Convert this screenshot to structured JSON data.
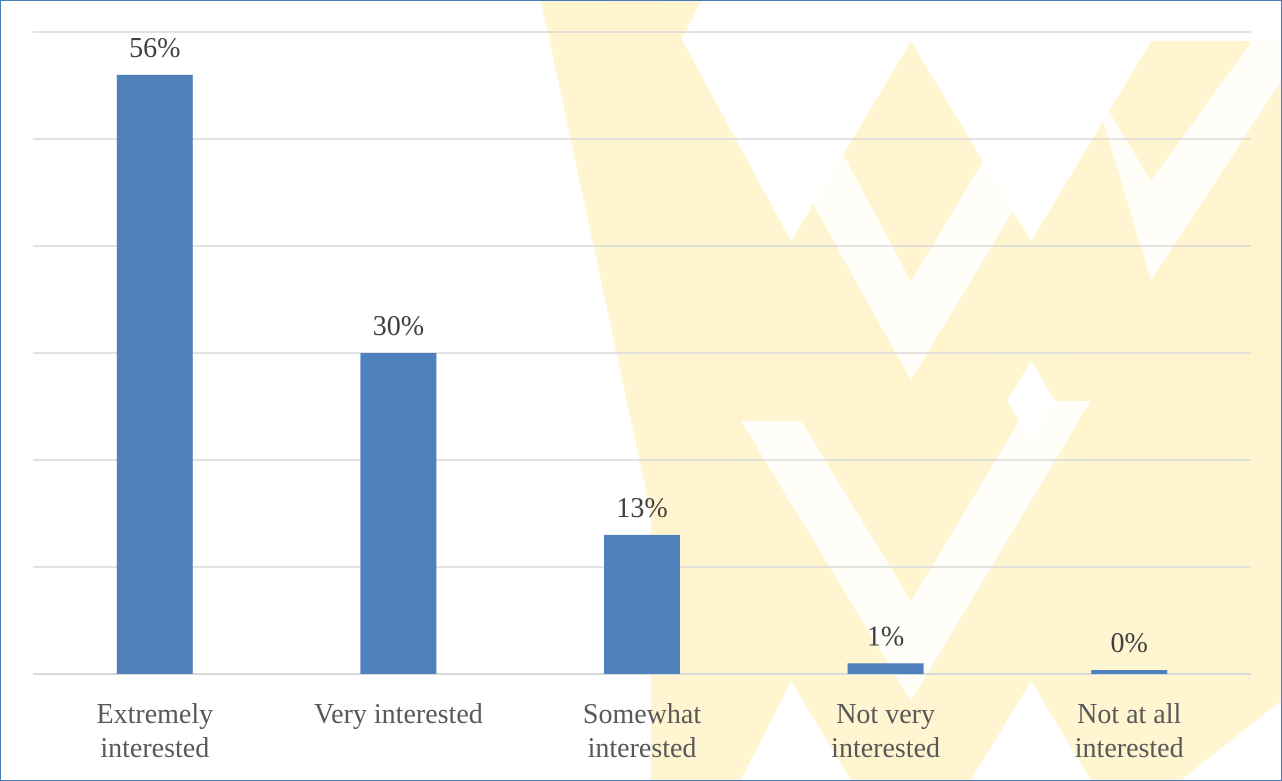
{
  "chart_data": {
    "type": "bar",
    "categories": [
      [
        "Extremely",
        "interested"
      ],
      [
        "Very interested"
      ],
      [
        "Somewhat",
        "interested"
      ],
      [
        "Not very",
        "interested"
      ],
      [
        "Not at all",
        "interested"
      ]
    ],
    "values": [
      56,
      30,
      13,
      1,
      0
    ],
    "data_labels": [
      "56%",
      "30%",
      "13%",
      "1%",
      "0%"
    ],
    "title": "",
    "xlabel": "",
    "ylabel": "",
    "ylim": [
      0,
      60
    ],
    "grid": true,
    "legend": "none",
    "colors": {
      "bar": "#4f81bd",
      "grid": "#d9d9d9",
      "watermark": "#fff4cc",
      "border": "#4a7ab5"
    }
  }
}
